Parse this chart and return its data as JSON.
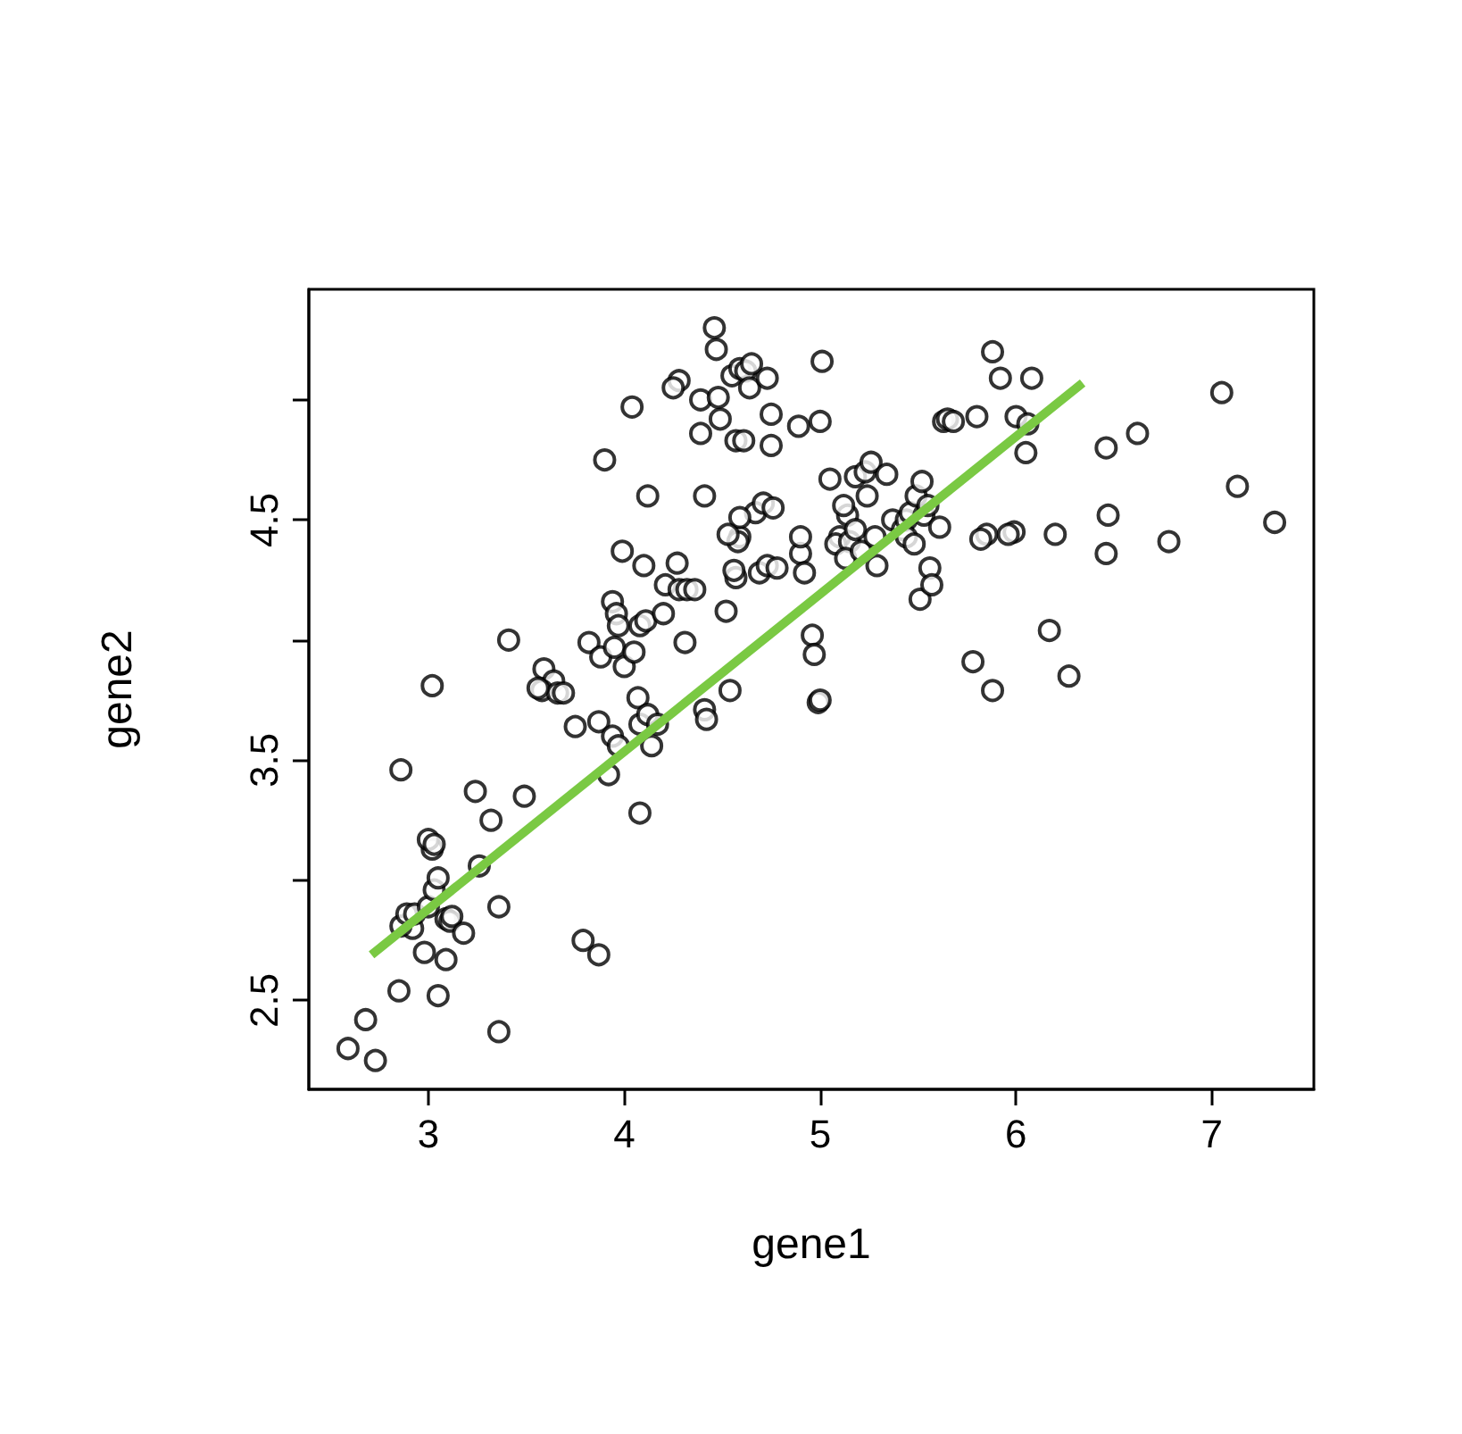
{
  "chart_data": {
    "type": "scatter",
    "xlabel": "gene1",
    "ylabel": "gene2",
    "xlim": [
      2.39,
      7.52
    ],
    "xticks": [
      3,
      4,
      5,
      6,
      7
    ],
    "ylim": [
      2.13,
      5.46
    ],
    "yticks": [
      2.5,
      {
        "value": 3,
        "label": null
      },
      3.5,
      {
        "value": 4,
        "label": null
      },
      4.5,
      {
        "value": 5,
        "label": null
      }
    ],
    "grid": false,
    "series": [
      {
        "color": "#000000",
        "marker": "circle",
        "x": [
          2.59,
          2.73,
          2.68,
          2.85,
          3.05,
          3.09,
          2.98,
          2.92,
          2.86,
          2.89,
          2.93,
          3.0,
          3.09,
          3.11,
          3.12,
          3.18,
          3.03,
          3.05,
          3.02,
          3.0,
          3.03,
          3.02,
          2.86,
          3.26,
          3.32,
          3.24,
          3.36,
          3.36,
          3.49,
          3.41,
          3.59,
          3.64,
          3.58,
          3.66,
          3.56,
          3.69,
          3.75,
          3.79,
          3.87,
          3.82,
          3.88,
          3.87,
          3.94,
          3.92,
          3.97,
          3.9,
          3.99,
          3.94,
          3.96,
          3.97,
          3.95,
          4.0,
          4.05,
          4.07,
          4.08,
          4.12,
          4.14,
          4.08,
          4.17,
          4.04,
          4.12,
          4.1,
          4.08,
          4.11,
          4.2,
          4.21,
          4.27,
          4.28,
          4.32,
          4.31,
          4.36,
          4.39,
          4.28,
          4.25,
          4.39,
          4.41,
          4.41,
          4.42,
          4.48,
          4.46,
          4.47,
          4.49,
          4.55,
          4.59,
          4.57,
          4.62,
          4.61,
          4.65,
          4.64,
          4.73,
          4.75,
          4.52,
          4.54,
          4.57,
          4.56,
          4.59,
          4.69,
          4.73,
          4.67,
          4.71,
          4.76,
          4.58,
          4.59,
          4.53,
          4.75,
          4.78,
          4.89,
          4.9,
          4.92,
          5.0,
          5.01,
          4.96,
          4.97,
          4.99,
          5.0,
          4.9,
          5.05,
          5.1,
          5.08,
          5.14,
          5.15,
          5.12,
          5.18,
          5.13,
          5.18,
          5.23,
          5.26,
          5.24,
          5.21,
          5.29,
          5.34,
          5.28,
          5.37,
          5.42,
          5.44,
          5.44,
          5.46,
          5.49,
          5.52,
          5.48,
          5.53,
          5.55,
          5.51,
          5.56,
          5.57,
          5.61,
          5.63,
          5.65,
          5.68,
          5.8,
          5.88,
          5.92,
          6.08,
          6.0,
          6.05,
          5.99,
          5.96,
          5.85,
          6.06,
          5.82,
          5.78,
          5.88,
          6.17,
          6.27,
          6.2,
          6.46,
          6.47,
          6.46,
          6.62,
          6.78,
          7.05,
          7.13,
          7.32
        ],
        "values": [
          2.3,
          2.25,
          2.42,
          2.54,
          2.52,
          2.67,
          2.7,
          2.8,
          2.81,
          2.86,
          2.86,
          2.89,
          2.84,
          2.83,
          2.85,
          2.78,
          2.96,
          3.01,
          3.13,
          3.17,
          3.15,
          3.81,
          3.46,
          3.06,
          3.25,
          3.37,
          2.89,
          2.37,
          3.35,
          4.0,
          3.88,
          3.83,
          3.79,
          3.78,
          3.8,
          3.78,
          3.64,
          2.75,
          2.69,
          3.99,
          3.93,
          3.66,
          3.6,
          3.44,
          3.56,
          4.75,
          4.37,
          4.16,
          4.11,
          4.06,
          3.97,
          3.89,
          3.95,
          3.76,
          3.65,
          3.69,
          3.56,
          3.28,
          3.65,
          4.97,
          4.6,
          4.31,
          4.06,
          4.08,
          4.11,
          4.23,
          4.32,
          4.21,
          4.21,
          3.99,
          4.21,
          5.0,
          5.08,
          5.05,
          4.86,
          4.6,
          3.71,
          3.67,
          5.01,
          5.3,
          5.21,
          4.92,
          5.1,
          5.13,
          4.83,
          5.12,
          4.83,
          5.15,
          5.05,
          5.09,
          4.81,
          4.12,
          3.79,
          4.26,
          4.29,
          4.43,
          4.28,
          4.31,
          4.53,
          4.57,
          4.55,
          4.41,
          4.51,
          4.44,
          4.94,
          4.3,
          4.89,
          4.36,
          4.28,
          4.91,
          5.16,
          4.02,
          3.94,
          3.74,
          3.75,
          4.43,
          4.67,
          4.43,
          4.4,
          4.52,
          4.41,
          4.56,
          4.46,
          4.34,
          4.68,
          4.7,
          4.74,
          4.6,
          4.37,
          4.31,
          4.69,
          4.43,
          4.5,
          4.46,
          4.5,
          4.43,
          4.53,
          4.6,
          4.66,
          4.4,
          4.52,
          4.56,
          4.17,
          4.3,
          4.23,
          4.47,
          4.91,
          4.92,
          4.91,
          4.93,
          5.2,
          5.09,
          5.09,
          4.93,
          4.78,
          4.45,
          4.44,
          4.44,
          4.9,
          4.42,
          3.91,
          3.79,
          4.04,
          3.85,
          4.44,
          4.36,
          4.52,
          4.8,
          4.86,
          4.41,
          5.03,
          4.64,
          4.49
        ]
      },
      {
        "type": "line",
        "color": "#7ac943",
        "marker": "none",
        "x": [
          2.71,
          6.34
        ],
        "values": [
          2.69,
          5.07
        ]
      }
    ]
  }
}
